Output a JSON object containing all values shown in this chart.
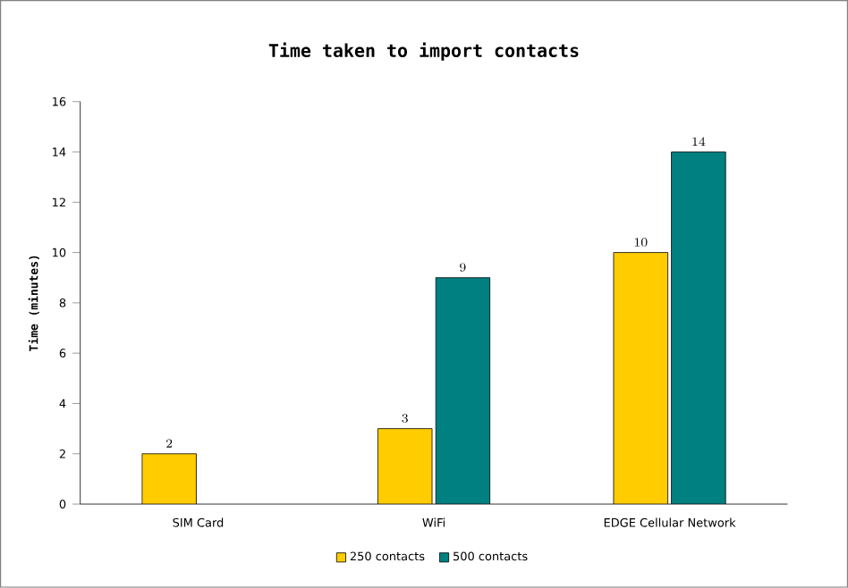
{
  "chart_data": {
    "type": "bar",
    "title": "Time taken to import contacts",
    "ylabel": "Time (minutes)",
    "categories": [
      "SIM Card",
      "WiFi",
      "EDGE Cellular Network"
    ],
    "series": [
      {
        "name": "250 contacts",
        "color": "#ffcc00",
        "values": [
          2,
          3,
          10
        ]
      },
      {
        "name": "500 contacts",
        "color": "#008080",
        "values": [
          null,
          9,
          14
        ]
      }
    ],
    "ylim": [
      0,
      16
    ],
    "yticks": [
      0,
      2,
      4,
      6,
      8,
      10,
      12,
      14,
      16
    ],
    "legend": "bottom",
    "data_labels": true
  }
}
